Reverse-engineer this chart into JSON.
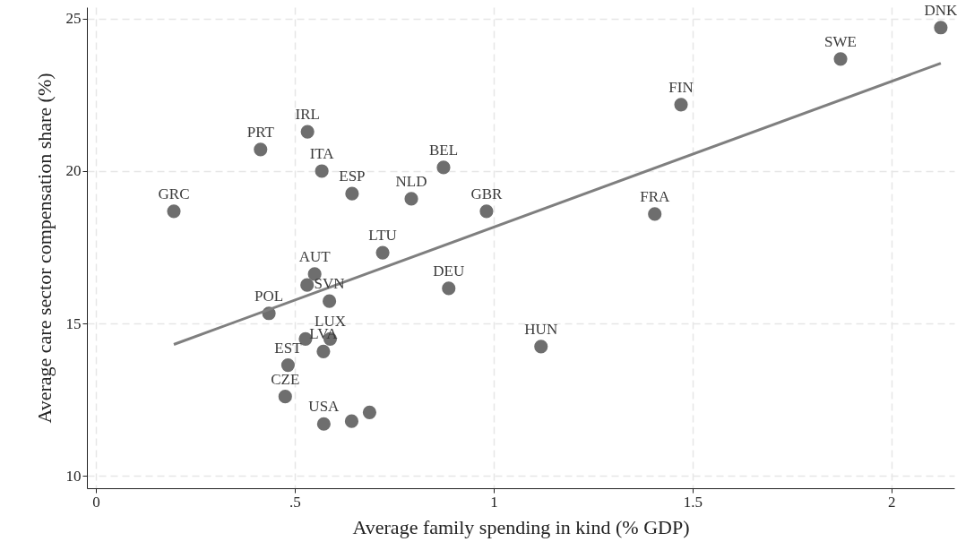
{
  "chart_data": {
    "type": "scatter",
    "xlabel": "Average family spending in kind (% GDP)",
    "ylabel": "Average care sector compensation share (%)",
    "xlim": [
      -0.0225,
      2.158
    ],
    "ylim": [
      9.59,
      25.38
    ],
    "xticks": [
      0,
      {
        "value": 0.5,
        "label": ".5"
      },
      1,
      {
        "value": 1.5,
        "label": "1.5"
      },
      2
    ],
    "yticks": [
      10,
      15,
      20,
      25
    ],
    "grid": true,
    "marker": "circle",
    "series": [
      {
        "color": "#6e6e6e",
        "x": [
          2.124,
          1.872,
          1.471,
          1.405,
          1.119,
          0.982,
          0.887,
          0.874,
          0.793,
          0.721,
          0.644,
          0.568,
          0.532,
          0.414,
          0.196,
          0.55,
          0.531,
          0.587,
          0.435,
          0.589,
          0.527,
          0.572,
          0.483,
          0.476,
          0.573,
          0.643,
          0.688
        ],
        "values": [
          24.71,
          23.68,
          22.18,
          18.59,
          14.24,
          18.68,
          16.15,
          20.12,
          19.09,
          17.32,
          19.26,
          20.0,
          21.29,
          20.71,
          18.68,
          16.62,
          16.26,
          15.73,
          15.33,
          14.49,
          14.49,
          14.08,
          13.63,
          12.6,
          11.7,
          11.79,
          12.08
        ],
        "value_labels": [
          "DNK",
          "SWE",
          "FIN",
          "FRA",
          "HUN",
          "GBR",
          "DEU",
          "BEL",
          "NLD",
          "LTU",
          "ESP",
          "ITA",
          "IRL",
          "PRT",
          "GRC",
          "AUT",
          null,
          "SVN",
          "POL",
          "LUX",
          null,
          "LVA",
          "EST",
          "CZE",
          "USA",
          null,
          null
        ]
      },
      {
        "type": "line",
        "marker": "none",
        "color": "#7f7f7f",
        "x": [
          0.196,
          2.124
        ],
        "values": [
          14.31,
          23.54
        ]
      }
    ]
  }
}
